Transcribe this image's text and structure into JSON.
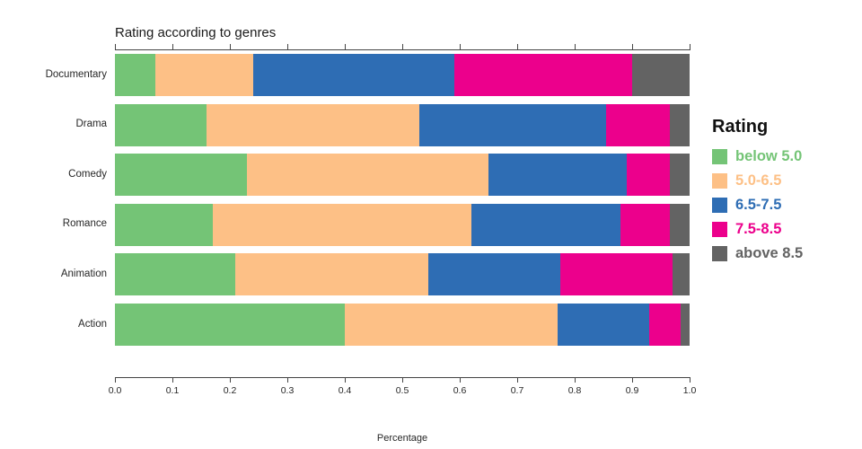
{
  "chart_data": {
    "type": "bar",
    "orientation": "horizontal",
    "stacked": true,
    "title": "Rating according to genres",
    "xlabel": "Percentage",
    "ylabel": "",
    "xlim": [
      0,
      1
    ],
    "x_ticks": [
      "0.0",
      "0.1",
      "0.2",
      "0.3",
      "0.4",
      "0.5",
      "0.6",
      "0.7",
      "0.8",
      "0.9",
      "1.0"
    ],
    "grid": false,
    "legend_title": "Rating",
    "legend_position": "right",
    "categories": [
      "Documentary",
      "Drama",
      "Comedy",
      "Romance",
      "Animation",
      "Action"
    ],
    "series": [
      {
        "name": "below 5.0",
        "color": "#74c476",
        "values": [
          0.07,
          0.16,
          0.23,
          0.17,
          0.21,
          0.4
        ]
      },
      {
        "name": "5.0-6.5",
        "color": "#fdc086",
        "values": [
          0.17,
          0.37,
          0.42,
          0.45,
          0.335,
          0.37
        ]
      },
      {
        "name": "6.5-7.5",
        "color": "#2e6db4",
        "values": [
          0.35,
          0.325,
          0.24,
          0.26,
          0.23,
          0.16
        ]
      },
      {
        "name": "7.5-8.5",
        "color": "#ec008c",
        "values": [
          0.31,
          0.11,
          0.075,
          0.085,
          0.195,
          0.055
        ]
      },
      {
        "name": "above 8.5",
        "color": "#636363",
        "values": [
          0.1,
          0.035,
          0.035,
          0.035,
          0.03,
          0.015
        ]
      }
    ]
  }
}
